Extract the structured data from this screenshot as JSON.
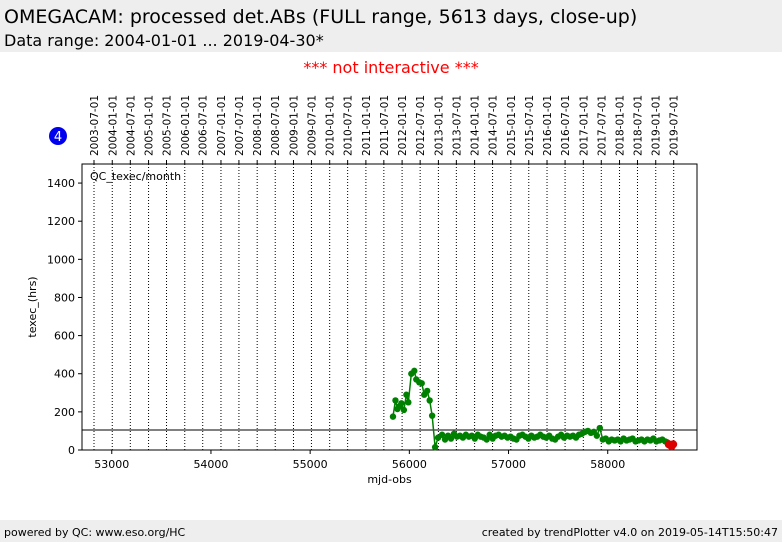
{
  "header": {
    "title": "OMEGACAM: processed det.ABs (FULL range, 5613 days, close-up)",
    "subtitle": "Data range: 2004-01-01 ... 2019-04-30*"
  },
  "notice": "*** not interactive ***",
  "badge": "4",
  "footer": {
    "left": "powered by QC: www.eso.org/HC",
    "right": "created by trendPlotter v4.0 on 2019-05-14T15:50:47"
  },
  "chart_data": {
    "type": "scatter",
    "title": "QC_texec/month",
    "xlabel": "mjd-obs",
    "ylabel": "texec_(hrs)",
    "xlim": [
      52700,
      58900
    ],
    "ylim": [
      0,
      1500
    ],
    "xticks": [
      53000,
      54000,
      55000,
      56000,
      57000,
      58000
    ],
    "yticks": [
      0,
      200,
      400,
      600,
      800,
      1000,
      1200,
      1400
    ],
    "reference_line_y": 105,
    "grid": "vertical dotted at date ticks",
    "date_ticks": [
      {
        "label": "2003-07-01",
        "mjd": 52821
      },
      {
        "label": "2004-01-01",
        "mjd": 53005
      },
      {
        "label": "2004-07-01",
        "mjd": 53187
      },
      {
        "label": "2005-01-01",
        "mjd": 53371
      },
      {
        "label": "2005-07-01",
        "mjd": 53552
      },
      {
        "label": "2006-01-01",
        "mjd": 53736
      },
      {
        "label": "2006-07-01",
        "mjd": 53917
      },
      {
        "label": "2007-01-01",
        "mjd": 54101
      },
      {
        "label": "2007-07-01",
        "mjd": 54282
      },
      {
        "label": "2008-01-01",
        "mjd": 54466
      },
      {
        "label": "2008-07-01",
        "mjd": 54648
      },
      {
        "label": "2009-01-01",
        "mjd": 54832
      },
      {
        "label": "2009-07-01",
        "mjd": 55013
      },
      {
        "label": "2010-01-01",
        "mjd": 55197
      },
      {
        "label": "2010-07-01",
        "mjd": 55378
      },
      {
        "label": "2011-01-01",
        "mjd": 55562
      },
      {
        "label": "2011-07-01",
        "mjd": 55743
      },
      {
        "label": "2012-01-01",
        "mjd": 55927
      },
      {
        "label": "2012-07-01",
        "mjd": 56109
      },
      {
        "label": "2013-01-01",
        "mjd": 56293
      },
      {
        "label": "2013-07-01",
        "mjd": 56474
      },
      {
        "label": "2014-01-01",
        "mjd": 56658
      },
      {
        "label": "2014-07-01",
        "mjd": 56839
      },
      {
        "label": "2015-01-01",
        "mjd": 57023
      },
      {
        "label": "2015-07-01",
        "mjd": 57204
      },
      {
        "label": "2016-01-01",
        "mjd": 57388
      },
      {
        "label": "2016-07-01",
        "mjd": 57570
      },
      {
        "label": "2017-01-01",
        "mjd": 57754
      },
      {
        "label": "2017-07-01",
        "mjd": 57935
      },
      {
        "label": "2018-01-01",
        "mjd": 58119
      },
      {
        "label": "2018-07-01",
        "mjd": 58300
      },
      {
        "label": "2019-01-01",
        "mjd": 58484
      },
      {
        "label": "2019-07-01",
        "mjd": 58665
      }
    ],
    "series": [
      {
        "color": "#008000",
        "x": [
          55835,
          55860,
          55880,
          55900,
          55920,
          55945,
          55970,
          55990,
          56020,
          56050,
          56070,
          56100,
          56125,
          56150,
          56180,
          56205,
          56230,
          56260,
          56290,
          56330,
          56360,
          56390,
          56420,
          56450,
          56480,
          56510,
          56540,
          56570,
          56600,
          56630,
          56660,
          56690,
          56720,
          56750,
          56780,
          56810,
          56840,
          56870,
          56900,
          56930,
          56960,
          56990,
          57020,
          57050,
          57080,
          57110,
          57140,
          57170,
          57200,
          57230,
          57260,
          57290,
          57320,
          57350,
          57380,
          57410,
          57440,
          57470,
          57500,
          57530,
          57560,
          57590,
          57620,
          57650,
          57680,
          57710,
          57740,
          57770,
          57800,
          57830,
          57860,
          57890,
          57920,
          57950,
          57980,
          58010,
          58040,
          58070,
          58100,
          58130,
          58160,
          58190,
          58220,
          58250,
          58280,
          58310,
          58340,
          58370,
          58400,
          58430,
          58460,
          58490,
          58520,
          58550,
          58580,
          58600
        ],
        "y": [
          175,
          260,
          215,
          230,
          245,
          210,
          290,
          250,
          400,
          415,
          370,
          355,
          350,
          290,
          310,
          260,
          180,
          15,
          65,
          80,
          55,
          75,
          60,
          85,
          70,
          75,
          65,
          80,
          70,
          75,
          60,
          80,
          70,
          65,
          55,
          80,
          60,
          75,
          80,
          70,
          75,
          65,
          70,
          60,
          55,
          75,
          80,
          70,
          60,
          75,
          65,
          70,
          80,
          70,
          65,
          75,
          60,
          55,
          70,
          80,
          65,
          75,
          70,
          75,
          65,
          80,
          85,
          95,
          100,
          90,
          95,
          75,
          115,
          55,
          60,
          45,
          55,
          50,
          55,
          45,
          60,
          50,
          55,
          60,
          45,
          50,
          55,
          45,
          55,
          50,
          60,
          45,
          50,
          55,
          45,
          40
        ]
      },
      {
        "color": "#dd0000",
        "x": [
          58615,
          58630,
          58645,
          58660
        ],
        "y": [
          30,
          25,
          20,
          30
        ]
      }
    ]
  }
}
